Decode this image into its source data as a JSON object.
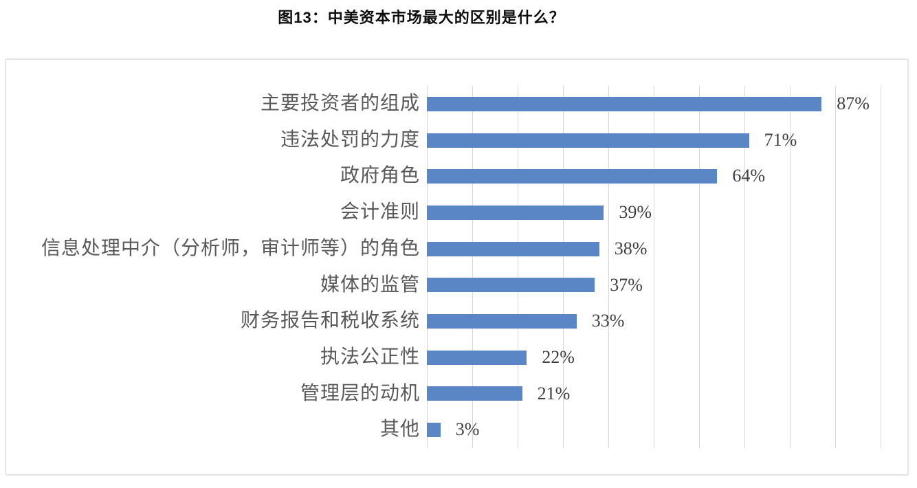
{
  "title": "图13：中美资本市场最大的区别是什么？",
  "chart_data": {
    "type": "bar",
    "orientation": "horizontal",
    "title": "图13：中美资本市场最大的区别是什么？",
    "categories": [
      "主要投资者的组成",
      "违法处罚的力度",
      "政府角色",
      "会计准则",
      "信息处理中介（分析师，审计师等）的角色",
      "媒体的监管",
      "财务报告和税收系统",
      "执法公正性",
      "管理层的动机",
      "其他"
    ],
    "values": [
      87,
      71,
      64,
      39,
      38,
      37,
      33,
      22,
      21,
      3
    ],
    "value_labels": [
      "87%",
      "71%",
      "64%",
      "39%",
      "38%",
      "37%",
      "33%",
      "22%",
      "21%",
      "3%"
    ],
    "xlabel": "",
    "ylabel": "",
    "xlim": [
      0,
      100
    ],
    "grid": true,
    "gridline_interval_percent": 10,
    "legend": "none",
    "colors": {
      "bar": "#5a86c6",
      "gridline": "#d8d8d8",
      "frame_border": "#e4e4e4",
      "title_text": "#0d0d0d",
      "category_text": "#595959",
      "value_text": "#3f3f3f",
      "background": "#ffffff"
    }
  }
}
